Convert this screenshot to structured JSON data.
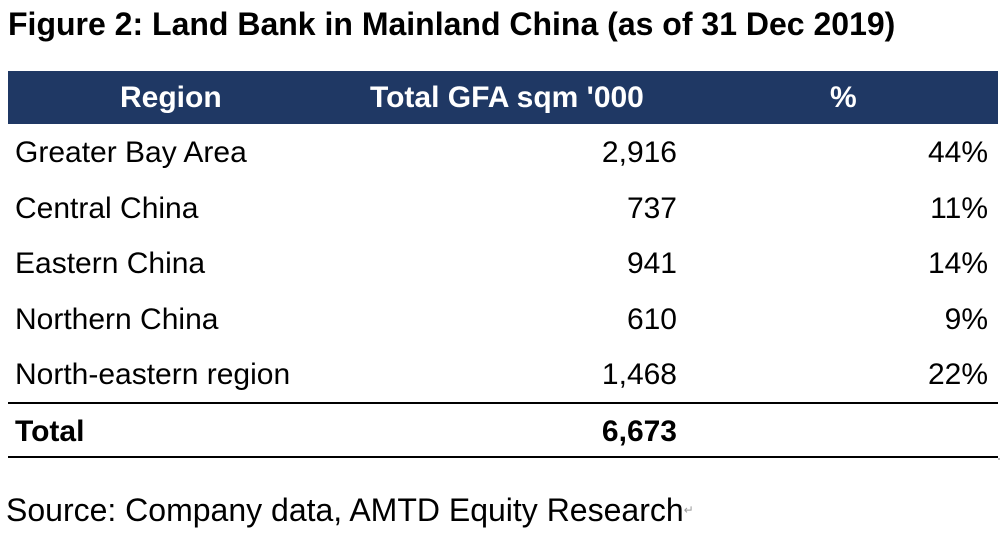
{
  "figure": {
    "title": "Figure 2: Land Bank in Mainland China (as of 31 Dec 2019)"
  },
  "table": {
    "headers": {
      "region": "Region",
      "gfa": "Total GFA sqm '000",
      "pct": "%"
    },
    "rows": [
      {
        "region": "Greater Bay Area",
        "gfa": "2,916",
        "pct": "44%"
      },
      {
        "region": "Central China",
        "gfa": "737",
        "pct": "11%"
      },
      {
        "region": "Eastern China",
        "gfa": "941",
        "pct": "14%"
      },
      {
        "region": "Northern China",
        "gfa": "610",
        "pct": "9%"
      },
      {
        "region": "North-eastern region",
        "gfa": "1,468",
        "pct": "22%"
      }
    ],
    "total": {
      "label": "Total",
      "gfa": "6,673",
      "pct": ""
    }
  },
  "source": {
    "text": "Source: Company data, AMTD Equity Research",
    "mark": "↵"
  },
  "colors": {
    "header_bg": "#1f3864",
    "header_text": "#ffffff"
  }
}
